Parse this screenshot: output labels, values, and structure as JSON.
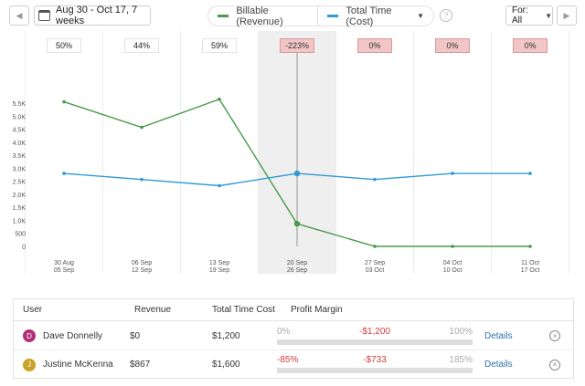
{
  "toolbar": {
    "prev_icon": "chevron-left-icon",
    "next_icon": "chevron-right-icon",
    "date_range": "Aug 30 - Oct 17, 7 weeks",
    "legend": [
      {
        "label": "Billable (Revenue)",
        "color": "#4a9a4a"
      },
      {
        "label": "Total Time (Cost)",
        "color": "#2e9bd6"
      }
    ],
    "help_glyph": "?",
    "for_filter": "For: All"
  },
  "chart_data": {
    "type": "line",
    "categories": [
      "30 Aug\n05 Sep",
      "06 Sep\n12 Sep",
      "13 Sep\n19 Sep",
      "20 Sep\n26 Sep",
      "27 Sep\n03 Oct",
      "04 Oct\n10 Oct",
      "11 Oct\n17 Oct"
    ],
    "category_lines": [
      [
        "30 Aug",
        "05 Sep"
      ],
      [
        "06 Sep",
        "12 Sep"
      ],
      [
        "13 Sep",
        "19 Sep"
      ],
      [
        "20 Sep",
        "26 Sep"
      ],
      [
        "27 Sep",
        "03 Oct"
      ],
      [
        "04 Oct",
        "10 Oct"
      ],
      [
        "11 Oct",
        "17 Oct"
      ]
    ],
    "series": [
      {
        "name": "Billable (Revenue)",
        "color": "#4a9a4a",
        "values": [
          5550,
          4570,
          5650,
          870,
          0,
          0,
          0
        ]
      },
      {
        "name": "Total Time (Cost)",
        "color": "#2e9bd6",
        "values": [
          2800,
          2570,
          2330,
          2800,
          2570,
          2800,
          2800
        ]
      }
    ],
    "margins": [
      "50%",
      "44%",
      "59%",
      "-223%",
      "0%",
      "0%",
      "0%"
    ],
    "margin_negative": [
      false,
      false,
      false,
      true,
      true,
      true,
      true
    ],
    "highlight_index": 3,
    "yticks": [
      {
        "value": 0,
        "label": "0"
      },
      {
        "value": 500,
        "label": "500"
      },
      {
        "value": 1000,
        "label": "1.0K"
      },
      {
        "value": 1500,
        "label": "1.5K"
      },
      {
        "value": 2000,
        "label": "2.0K"
      },
      {
        "value": 2500,
        "label": "2.5K"
      },
      {
        "value": 3000,
        "label": "3.0K"
      },
      {
        "value": 3500,
        "label": "3.5K"
      },
      {
        "value": 4000,
        "label": "4.0K"
      },
      {
        "value": 4500,
        "label": "4.5K"
      },
      {
        "value": 5000,
        "label": "5.0K"
      },
      {
        "value": 5500,
        "label": "5.5K"
      }
    ],
    "ylim": [
      0,
      5500
    ],
    "grid": "vertical"
  },
  "table": {
    "headers": {
      "user": "User",
      "revenue": "Revenue",
      "total_time_cost": "Total Time Cost",
      "profit_margin": "Profit Margin"
    },
    "rows": [
      {
        "initial": "D",
        "avatar_color": "#b0307a",
        "name": "Dave Donnelly",
        "revenue": "$0",
        "cost": "$1,200",
        "pm_left": "0%",
        "pm_mid": "-$1,200",
        "pm_right": "100%",
        "pm_left_negative": false,
        "details": "Details",
        "close_glyph": "×"
      },
      {
        "initial": "J",
        "avatar_color": "#c9a227",
        "name": "Justine McKenna",
        "revenue": "$867",
        "cost": "$1,600",
        "pm_left": "-85%",
        "pm_mid": "-$733",
        "pm_right": "185%",
        "pm_left_negative": true,
        "details": "Details",
        "close_glyph": "×"
      }
    ]
  }
}
